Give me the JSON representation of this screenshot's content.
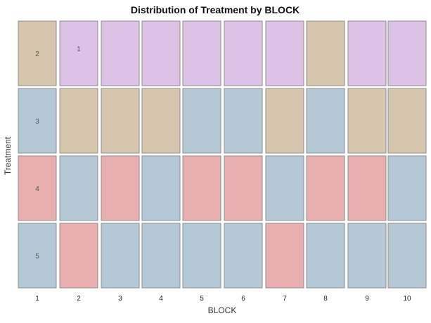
{
  "chart_data": {
    "type": "heatmap",
    "title": "Distribution of Treatment by BLOCK",
    "xlabel": "BLOCK",
    "ylabel": "Treatment",
    "x_categories": [
      "1",
      "2",
      "3",
      "4",
      "5",
      "6",
      "7",
      "8",
      "9",
      "10"
    ],
    "row_labels": [
      "2",
      "3",
      "4",
      "5"
    ],
    "treatment_colors": {
      "1": "#dcc3e6",
      "2": "#d6c6ae",
      "3": "#b4c8d6",
      "4": "#e8aeb0"
    },
    "grid": [
      [
        "2",
        "1",
        "1",
        "1",
        "1",
        "1",
        "1",
        "2",
        "1",
        "1"
      ],
      [
        "3",
        "2",
        "2",
        "2",
        "3",
        "3",
        "2",
        "3",
        "2",
        "2"
      ],
      [
        "4",
        "3",
        "4",
        "3",
        "4",
        "4",
        "3",
        "4",
        "4",
        "3"
      ],
      [
        "3",
        "4",
        "3",
        "3",
        "3",
        "3",
        "4",
        "3",
        "3",
        "3"
      ]
    ],
    "annotations": [
      {
        "block": "2",
        "row": 0,
        "text": "1"
      }
    ]
  }
}
